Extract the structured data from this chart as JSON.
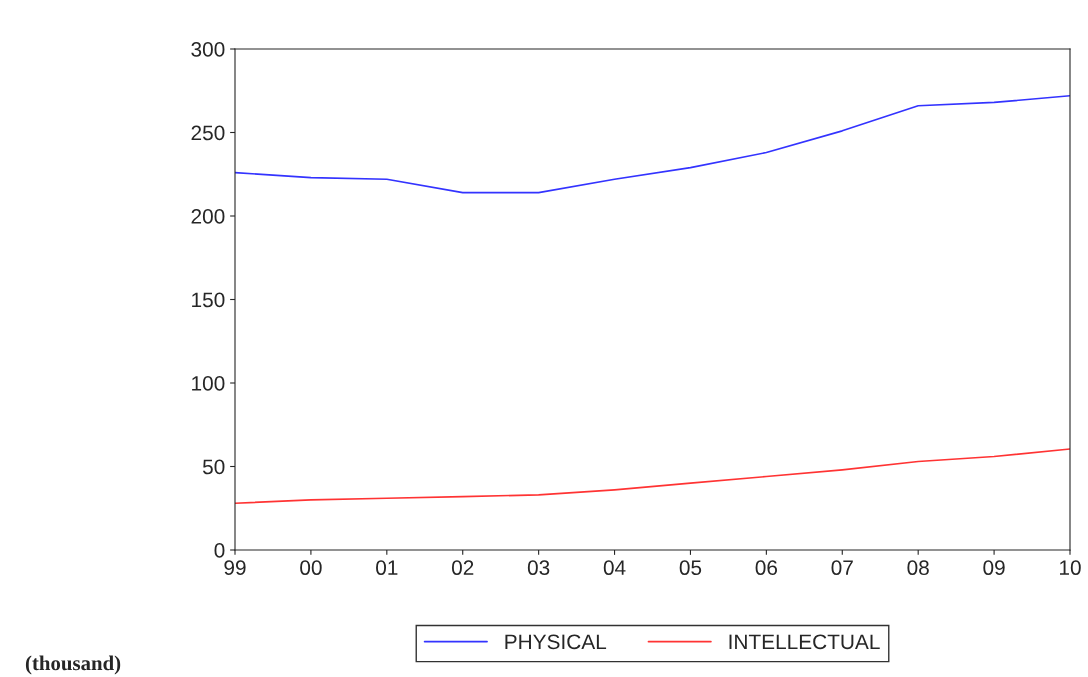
{
  "chart_data": {
    "type": "line",
    "categories": [
      "99",
      "00",
      "01",
      "02",
      "03",
      "04",
      "05",
      "06",
      "07",
      "08",
      "09",
      "10"
    ],
    "series": [
      {
        "name": "PHYSICAL",
        "color": "#3333ff",
        "values": [
          226,
          223,
          222,
          214,
          214,
          222,
          229,
          238,
          251,
          266,
          268,
          272
        ]
      },
      {
        "name": "INTELLECTUAL",
        "color": "#ff3333",
        "values": [
          28,
          30,
          31,
          32,
          33,
          36,
          40,
          44,
          48,
          53,
          56,
          60.5
        ]
      }
    ],
    "ylim": [
      0,
      300
    ],
    "yticks": [
      0,
      50,
      100,
      150,
      200,
      250,
      300
    ],
    "grid": false,
    "legend": "bottom",
    "marker": "none",
    "line_style": "solid",
    "annotations": [
      "(thousand)"
    ]
  }
}
